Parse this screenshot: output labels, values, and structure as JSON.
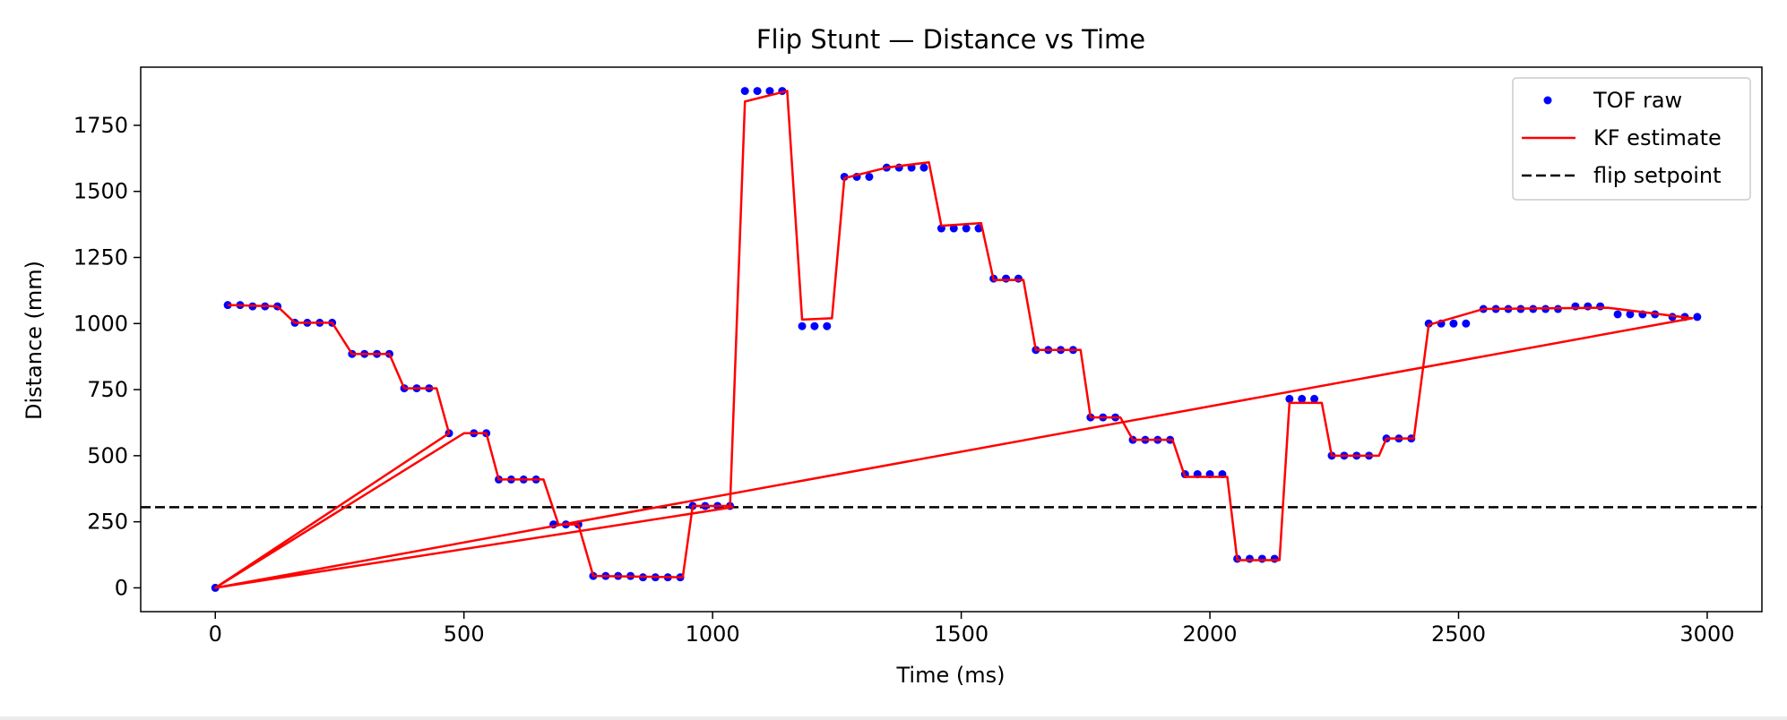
{
  "chart_data": {
    "type": "line",
    "title": "Flip Stunt — Distance vs Time",
    "xlabel": "Time (ms)",
    "ylabel": "Distance (mm)",
    "xlim": [
      -150,
      3110
    ],
    "ylim": [
      -90,
      1970
    ],
    "x_ticks": [
      0,
      500,
      1000,
      1500,
      2000,
      2500,
      3000
    ],
    "y_ticks": [
      0,
      250,
      500,
      750,
      1000,
      1250,
      1500,
      1750
    ],
    "grid": false,
    "legend_position": "top-right",
    "series": [
      {
        "name": "TOF raw",
        "kind": "scatter",
        "color": "#0000ff",
        "points": [
          [
            0,
            0
          ],
          [
            25,
            1070
          ],
          [
            50,
            1070
          ],
          [
            75,
            1065
          ],
          [
            100,
            1065
          ],
          [
            125,
            1065
          ],
          [
            160,
            1003
          ],
          [
            185,
            1003
          ],
          [
            210,
            1003
          ],
          [
            235,
            1003
          ],
          [
            275,
            885
          ],
          [
            300,
            885
          ],
          [
            325,
            885
          ],
          [
            350,
            885
          ],
          [
            380,
            755
          ],
          [
            405,
            755
          ],
          [
            430,
            755
          ],
          [
            470,
            585
          ],
          [
            520,
            585
          ],
          [
            545,
            585
          ],
          [
            570,
            410
          ],
          [
            595,
            410
          ],
          [
            620,
            410
          ],
          [
            645,
            410
          ],
          [
            680,
            240
          ],
          [
            705,
            240
          ],
          [
            730,
            240
          ],
          [
            760,
            45
          ],
          [
            785,
            45
          ],
          [
            810,
            45
          ],
          [
            835,
            45
          ],
          [
            860,
            40
          ],
          [
            885,
            40
          ],
          [
            910,
            40
          ],
          [
            935,
            40
          ],
          [
            960,
            310
          ],
          [
            985,
            310
          ],
          [
            1010,
            310
          ],
          [
            1035,
            310
          ],
          [
            1065,
            1880
          ],
          [
            1090,
            1880
          ],
          [
            1115,
            1880
          ],
          [
            1140,
            1880
          ],
          [
            1180,
            990
          ],
          [
            1205,
            990
          ],
          [
            1230,
            990
          ],
          [
            1265,
            1555
          ],
          [
            1290,
            1555
          ],
          [
            1315,
            1555
          ],
          [
            1350,
            1590
          ],
          [
            1375,
            1590
          ],
          [
            1400,
            1590
          ],
          [
            1425,
            1590
          ],
          [
            1460,
            1360
          ],
          [
            1485,
            1360
          ],
          [
            1510,
            1360
          ],
          [
            1535,
            1360
          ],
          [
            1565,
            1170
          ],
          [
            1590,
            1170
          ],
          [
            1615,
            1170
          ],
          [
            1650,
            900
          ],
          [
            1675,
            900
          ],
          [
            1700,
            900
          ],
          [
            1725,
            900
          ],
          [
            1760,
            645
          ],
          [
            1785,
            645
          ],
          [
            1810,
            645
          ],
          [
            1845,
            560
          ],
          [
            1870,
            560
          ],
          [
            1895,
            560
          ],
          [
            1920,
            560
          ],
          [
            1950,
            430
          ],
          [
            1975,
            430
          ],
          [
            2000,
            430
          ],
          [
            2025,
            430
          ],
          [
            2055,
            110
          ],
          [
            2080,
            110
          ],
          [
            2105,
            110
          ],
          [
            2130,
            110
          ],
          [
            2160,
            715
          ],
          [
            2185,
            715
          ],
          [
            2210,
            715
          ],
          [
            2245,
            500
          ],
          [
            2270,
            500
          ],
          [
            2295,
            500
          ],
          [
            2320,
            500
          ],
          [
            2355,
            565
          ],
          [
            2380,
            565
          ],
          [
            2405,
            565
          ],
          [
            2440,
            1000
          ],
          [
            2465,
            1000
          ],
          [
            2490,
            1000
          ],
          [
            2515,
            1000
          ],
          [
            2550,
            1055
          ],
          [
            2575,
            1055
          ],
          [
            2600,
            1055
          ],
          [
            2625,
            1055
          ],
          [
            2650,
            1055
          ],
          [
            2675,
            1055
          ],
          [
            2700,
            1055
          ],
          [
            2735,
            1065
          ],
          [
            2760,
            1065
          ],
          [
            2785,
            1065
          ],
          [
            2820,
            1035
          ],
          [
            2845,
            1035
          ],
          [
            2870,
            1035
          ],
          [
            2895,
            1035
          ],
          [
            2930,
            1025
          ],
          [
            2955,
            1025
          ],
          [
            2980,
            1025
          ]
        ]
      },
      {
        "name": "KF estimate",
        "kind": "line",
        "color": "#ff0000",
        "points": [
          [
            25,
            1070
          ],
          [
            125,
            1065
          ],
          [
            160,
            1003
          ],
          [
            235,
            1003
          ],
          [
            275,
            885
          ],
          [
            350,
            885
          ],
          [
            380,
            755
          ],
          [
            445,
            755
          ],
          [
            470,
            585
          ],
          [
            0,
            0
          ],
          [
            500,
            585
          ],
          [
            545,
            585
          ],
          [
            570,
            410
          ],
          [
            660,
            410
          ],
          [
            690,
            240
          ],
          [
            730,
            240
          ],
          [
            760,
            45
          ],
          [
            940,
            40
          ],
          [
            960,
            310
          ],
          [
            1035,
            310
          ],
          [
            1040,
            305
          ],
          [
            0,
            0
          ],
          [
            2970,
            1020
          ],
          [
            2800,
            1060
          ],
          [
            2550,
            1055
          ],
          [
            2440,
            995
          ],
          [
            2410,
            565
          ],
          [
            2355,
            565
          ],
          [
            2340,
            500
          ],
          [
            2245,
            500
          ],
          [
            2225,
            700
          ],
          [
            2160,
            700
          ],
          [
            2140,
            105
          ],
          [
            2055,
            105
          ],
          [
            2035,
            420
          ],
          [
            1950,
            420
          ],
          [
            1925,
            560
          ],
          [
            1845,
            560
          ],
          [
            1820,
            645
          ],
          [
            1760,
            645
          ],
          [
            1740,
            900
          ],
          [
            1650,
            900
          ],
          [
            1625,
            1165
          ],
          [
            1565,
            1165
          ],
          [
            1540,
            1380
          ],
          [
            1460,
            1370
          ],
          [
            1435,
            1610
          ],
          [
            1350,
            1590
          ],
          [
            1265,
            1550
          ],
          [
            1240,
            1020
          ],
          [
            1180,
            1015
          ],
          [
            1150,
            1880
          ],
          [
            1065,
            1840
          ],
          [
            1035,
            305
          ]
        ]
      },
      {
        "name": "flip setpoint",
        "kind": "hline",
        "color": "#000000",
        "dash": "dashed",
        "y": 305
      }
    ]
  }
}
